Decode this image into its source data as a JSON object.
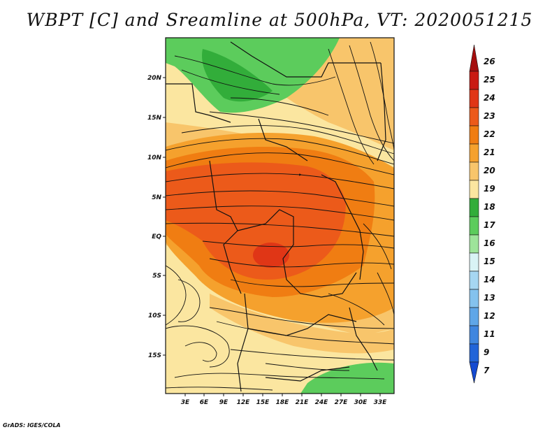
{
  "title": "WBPT [C] and Sreamline at 500hPa, VT: 2020051215",
  "credit": "GrADS: IGES/COLA",
  "lat_labels": [
    "20N",
    "15N",
    "10N",
    "5N",
    "EQ",
    "5S",
    "10S",
    "15S"
  ],
  "lon_labels": [
    "3E",
    "6E",
    "9E",
    "12E",
    "15E",
    "18E",
    "21E",
    "24E",
    "27E",
    "30E",
    "33E"
  ],
  "colorbar": {
    "labels": [
      "26",
      "25",
      "24",
      "23",
      "22",
      "21",
      "20",
      "19",
      "18",
      "17",
      "16",
      "15",
      "14",
      "13",
      "12",
      "11",
      "9",
      "7"
    ],
    "colors": [
      "#a50e0e",
      "#c91a12",
      "#e03616",
      "#ec5a1a",
      "#f07d12",
      "#f5a12d",
      "#f8c56b",
      "#fbe6a0",
      "#32ad3a",
      "#5ccc5c",
      "#9ee49a",
      "#d9f3f5",
      "#a6d7f2",
      "#84c2ee",
      "#5fa6e8",
      "#3f86df",
      "#2164d8",
      "#144ad1"
    ]
  },
  "field_colors": {
    "t17": "#5ccc5c",
    "t18": "#32ad3a",
    "t19": "#fbe6a0",
    "t20": "#f8c56b",
    "t21": "#f5a12d",
    "t22": "#f07d12",
    "t23": "#ec5a1a",
    "t24": "#e03616"
  }
}
